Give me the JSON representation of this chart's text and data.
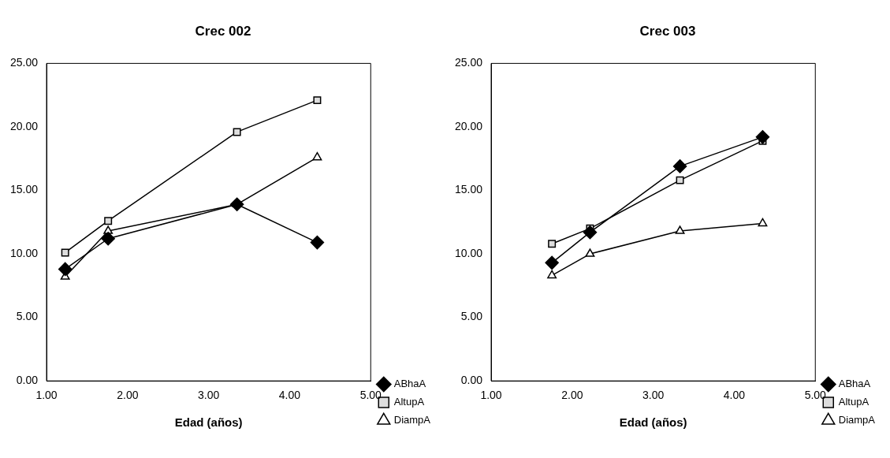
{
  "chart_data": [
    {
      "type": "line",
      "title": "Crec 002",
      "xlabel": "Edad (años)",
      "xlim": [
        1,
        5
      ],
      "ylim": [
        0,
        25
      ],
      "xticks": [
        {
          "value": 1,
          "label": "1.00"
        },
        {
          "value": 2,
          "label": "2.00"
        },
        {
          "value": 3,
          "label": "3.00"
        },
        {
          "value": 4,
          "label": "4.00"
        },
        {
          "value": 5,
          "label": "5.00"
        }
      ],
      "yticks": [
        {
          "value": 0,
          "label": "0.00"
        },
        {
          "value": 5,
          "label": "5.00"
        },
        {
          "value": 10,
          "label": "10.00"
        },
        {
          "value": 15,
          "label": "15.00"
        },
        {
          "value": 20,
          "label": "20.00"
        },
        {
          "value": 25,
          "label": "25.00"
        }
      ],
      "x": [
        1.23,
        1.76,
        3.35,
        4.34
      ],
      "grid": false,
      "legend": "bottom right",
      "series": [
        {
          "name": "ABhaA",
          "color": "#000000",
          "marker": "diamond",
          "values": [
            8.8,
            11.2,
            13.9,
            10.9
          ]
        },
        {
          "name": "AltupA",
          "color": "#000000",
          "marker": "square",
          "values": [
            10.1,
            12.6,
            19.6,
            22.1
          ]
        },
        {
          "name": "DiampA",
          "color": "#000000",
          "marker": "triangle",
          "values": [
            8.2,
            11.8,
            13.9,
            17.6
          ]
        }
      ]
    },
    {
      "type": "line",
      "title": "Crec 003",
      "xlabel": "Edad (años)",
      "xlim": [
        1,
        5
      ],
      "ylim": [
        0,
        25
      ],
      "xticks": [
        {
          "value": 1,
          "label": "1.00"
        },
        {
          "value": 2,
          "label": "2.00"
        },
        {
          "value": 3,
          "label": "3.00"
        },
        {
          "value": 4,
          "label": "4.00"
        },
        {
          "value": 5,
          "label": "5.00"
        }
      ],
      "yticks": [
        {
          "value": 0,
          "label": "0.00"
        },
        {
          "value": 5,
          "label": "5.00"
        },
        {
          "value": 10,
          "label": "10.00"
        },
        {
          "value": 15,
          "label": "15.00"
        },
        {
          "value": 20,
          "label": "20.00"
        },
        {
          "value": 25,
          "label": "25.00"
        }
      ],
      "x": [
        1.75,
        2.22,
        3.33,
        4.35
      ],
      "grid": false,
      "legend": "bottom right",
      "series": [
        {
          "name": "ABhaA",
          "color": "#000000",
          "marker": "diamond",
          "values": [
            9.3,
            11.7,
            16.9,
            19.2
          ]
        },
        {
          "name": "AltupA",
          "color": "#000000",
          "marker": "square",
          "values": [
            10.8,
            12.0,
            15.8,
            18.9
          ]
        },
        {
          "name": "DiampA",
          "color": "#000000",
          "marker": "triangle",
          "values": [
            8.3,
            10.0,
            11.8,
            12.4
          ]
        }
      ]
    }
  ]
}
